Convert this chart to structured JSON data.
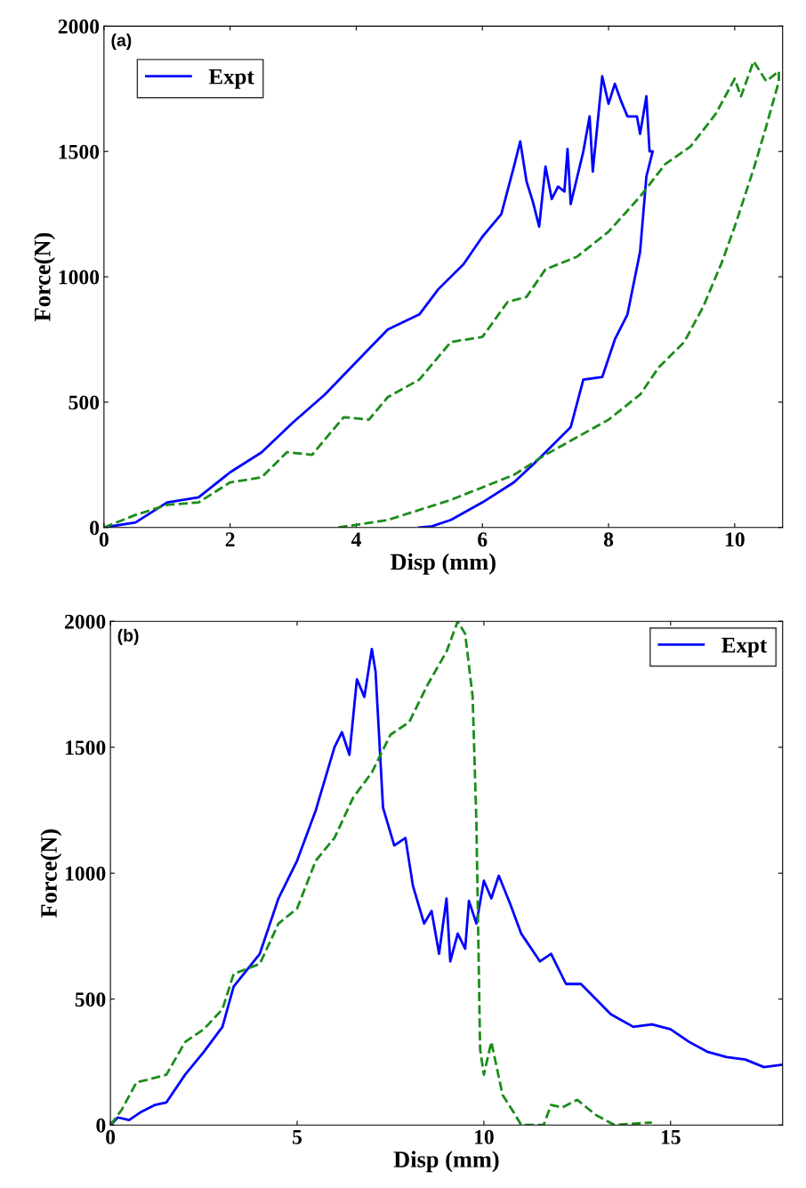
{
  "chart_data": [
    {
      "type": "line",
      "xlabel": "Disp (mm)",
      "ylabel": "Force(N)",
      "annotations": [
        "(a)"
      ],
      "legend": "top left",
      "xlim": [
        0,
        10.76
      ],
      "xticks": [
        0,
        2,
        4,
        6,
        8,
        10
      ],
      "ylim": [
        0,
        2000
      ],
      "yticks": [
        0,
        500,
        1000,
        1500,
        2000
      ],
      "series": [
        {
          "name": "Expt",
          "color": "#0000ff",
          "line_style": "solid",
          "x": [
            0,
            0.5,
            1,
            1.5,
            2,
            2.5,
            3,
            3.5,
            4,
            4.5,
            5,
            5.3,
            5.7,
            6,
            6.3,
            6.5,
            6.6,
            6.7,
            6.8,
            6.9,
            7,
            7.1,
            7.2,
            7.3,
            7.35,
            7.4,
            7.6,
            7.7,
            7.75,
            7.9,
            8,
            8.1,
            8.2,
            8.3,
            8.45,
            8.5,
            8.6,
            8.65,
            8.7,
            8.6,
            8.5,
            8.3,
            8.1,
            7.9,
            7.6,
            7.4,
            7,
            6.8,
            6.5,
            6,
            5.5,
            5.2,
            5
          ],
          "values": [
            0,
            20,
            100,
            120,
            220,
            300,
            420,
            530,
            660,
            790,
            850,
            950,
            1050,
            1160,
            1250,
            1440,
            1540,
            1380,
            1300,
            1200,
            1440,
            1310,
            1360,
            1340,
            1510,
            1290,
            1500,
            1640,
            1420,
            1800,
            1690,
            1770,
            1700,
            1640,
            1640,
            1570,
            1720,
            1500,
            1500,
            1400,
            1100,
            850,
            750,
            600,
            590,
            400,
            300,
            250,
            180,
            100,
            30,
            5,
            0
          ]
        },
        {
          "color": "#1a8c1a",
          "line_style": "dashed",
          "x": [
            0,
            0.5,
            1,
            1.5,
            2,
            2.5,
            2.9,
            3.3,
            3.8,
            4.2,
            4.5,
            5,
            5.5,
            6,
            6.4,
            6.7,
            7,
            7.5,
            8,
            8.5,
            8.9,
            9.3,
            9.7,
            10,
            10.1,
            10.3,
            10.5,
            10.7,
            10.7,
            10.5,
            10.3,
            10,
            9.8,
            9.5,
            9.2,
            8.8,
            8.5,
            8,
            7.5,
            7,
            6.5,
            6,
            5.5,
            5,
            4.5,
            4,
            3.7
          ],
          "values": [
            0,
            50,
            90,
            100,
            180,
            200,
            300,
            290,
            440,
            430,
            520,
            590,
            740,
            760,
            900,
            920,
            1030,
            1080,
            1180,
            1320,
            1450,
            1520,
            1650,
            1790,
            1720,
            1860,
            1780,
            1820,
            1780,
            1600,
            1430,
            1200,
            1060,
            880,
            740,
            640,
            530,
            430,
            360,
            290,
            210,
            160,
            110,
            70,
            30,
            10,
            0
          ]
        }
      ]
    },
    {
      "type": "line",
      "xlabel": "Disp (mm)",
      "ylabel": "Force(N)",
      "annotations": [
        "(b)"
      ],
      "legend": "top right",
      "xlim": [
        0,
        18
      ],
      "xticks": [
        0,
        5,
        10,
        15
      ],
      "ylim": [
        0,
        2000
      ],
      "yticks": [
        0,
        500,
        1000,
        1500,
        2000
      ],
      "series": [
        {
          "name": "Expt",
          "color": "#0000ff",
          "line_style": "solid",
          "x": [
            0,
            0.2,
            0.5,
            0.8,
            1.2,
            1.5,
            2,
            2.5,
            3,
            3.3,
            4,
            4.5,
            5,
            5.5,
            6,
            6.2,
            6.4,
            6.6,
            6.8,
            7,
            7.1,
            7.3,
            7.6,
            7.9,
            8.1,
            8.4,
            8.6,
            8.8,
            9,
            9.1,
            9.3,
            9.5,
            9.6,
            9.8,
            10,
            10.2,
            10.4,
            10.7,
            11,
            11.5,
            11.8,
            12.2,
            12.6,
            13,
            13.4,
            14,
            14.5,
            15,
            15.5,
            16,
            16.5,
            17,
            17.5,
            18
          ],
          "values": [
            0,
            30,
            20,
            50,
            80,
            90,
            200,
            290,
            390,
            550,
            680,
            900,
            1050,
            1250,
            1500,
            1560,
            1470,
            1770,
            1700,
            1890,
            1800,
            1260,
            1110,
            1140,
            950,
            800,
            850,
            680,
            900,
            650,
            760,
            700,
            890,
            800,
            970,
            900,
            990,
            880,
            760,
            650,
            680,
            560,
            560,
            500,
            440,
            390,
            400,
            380,
            330,
            290,
            270,
            260,
            230,
            240
          ]
        },
        {
          "color": "#1a8c1a",
          "line_style": "dashed",
          "x": [
            0,
            0.3,
            0.7,
            1,
            1.5,
            2,
            2.5,
            3,
            3.3,
            4,
            4.5,
            5,
            5.5,
            6,
            6.5,
            7,
            7.5,
            8,
            8.5,
            9,
            9.3,
            9.5,
            9.7,
            9.8,
            9.9,
            10,
            10.2,
            10.5,
            10.8,
            11,
            11.6,
            11.8,
            12.1,
            12.5,
            13,
            13.5,
            14.5
          ],
          "values": [
            0,
            60,
            170,
            180,
            200,
            330,
            380,
            460,
            600,
            640,
            800,
            860,
            1050,
            1140,
            1300,
            1400,
            1550,
            1600,
            1750,
            1880,
            2000,
            1950,
            1700,
            1200,
            300,
            200,
            330,
            120,
            50,
            0,
            0,
            80,
            70,
            100,
            40,
            0,
            10
          ]
        }
      ]
    }
  ]
}
